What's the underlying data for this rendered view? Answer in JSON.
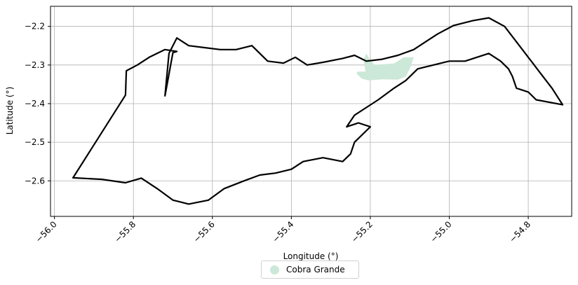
{
  "chart_data": {
    "type": "map",
    "xlabel": "Longitude (°)",
    "ylabel": "Latitude (°)",
    "xlim": [
      -56.01,
      -54.69
    ],
    "ylim": [
      -2.692,
      -2.148
    ],
    "x_ticks": [
      -56.0,
      -55.8,
      -55.6,
      -55.4,
      -55.2,
      -55.0,
      -54.8
    ],
    "x_tick_labels": [
      "−56.0",
      "−55.8",
      "−55.6",
      "−55.4",
      "−55.2",
      "−55.0",
      "−54.8"
    ],
    "y_ticks": [
      -2.2,
      -2.3,
      -2.4,
      -2.5,
      -2.6
    ],
    "y_tick_labels": [
      "−2.2",
      "−2.3",
      "−2.4",
      "−2.5",
      "−2.6"
    ],
    "grid": true,
    "legend": {
      "position": "bottom-center",
      "entries": [
        {
          "label": "Cobra Grande",
          "color": "#cce8d8"
        }
      ]
    },
    "highlighted_region": {
      "name": "Cobra Grande",
      "color": "#cce8d8",
      "polygon": [
        [
          -55.235,
          -2.322
        ],
        [
          -55.232,
          -2.317
        ],
        [
          -55.212,
          -2.317
        ],
        [
          -55.217,
          -2.287
        ],
        [
          -55.21,
          -2.27
        ],
        [
          -55.203,
          -2.283
        ],
        [
          -55.19,
          -2.3
        ],
        [
          -55.17,
          -2.298
        ],
        [
          -55.14,
          -2.296
        ],
        [
          -55.115,
          -2.28
        ],
        [
          -55.09,
          -2.28
        ],
        [
          -55.098,
          -2.305
        ],
        [
          -55.11,
          -2.33
        ],
        [
          -55.13,
          -2.338
        ],
        [
          -55.17,
          -2.337
        ],
        [
          -55.205,
          -2.34
        ],
        [
          -55.222,
          -2.335
        ],
        [
          -55.235,
          -2.322
        ]
      ]
    },
    "boundary_outline": [
      [
        -55.953,
        -2.592
      ],
      [
        -55.88,
        -2.596
      ],
      [
        -55.82,
        -2.605
      ],
      [
        -55.78,
        -2.593
      ],
      [
        -55.74,
        -2.62
      ],
      [
        -55.7,
        -2.65
      ],
      [
        -55.66,
        -2.66
      ],
      [
        -55.61,
        -2.65
      ],
      [
        -55.57,
        -2.62
      ],
      [
        -55.52,
        -2.6
      ],
      [
        -55.48,
        -2.585
      ],
      [
        -55.44,
        -2.58
      ],
      [
        -55.4,
        -2.57
      ],
      [
        -55.37,
        -2.55
      ],
      [
        -55.32,
        -2.54
      ],
      [
        -55.27,
        -2.55
      ],
      [
        -55.25,
        -2.53
      ],
      [
        -55.24,
        -2.5
      ],
      [
        -55.22,
        -2.48
      ],
      [
        -55.2,
        -2.46
      ],
      [
        -55.23,
        -2.45
      ],
      [
        -55.26,
        -2.46
      ],
      [
        -55.24,
        -2.43
      ],
      [
        -55.21,
        -2.41
      ],
      [
        -55.18,
        -2.39
      ],
      [
        -55.14,
        -2.36
      ],
      [
        -55.11,
        -2.34
      ],
      [
        -55.08,
        -2.31
      ],
      [
        -55.04,
        -2.3
      ],
      [
        -55.0,
        -2.29
      ],
      [
        -54.96,
        -2.29
      ],
      [
        -54.93,
        -2.28
      ],
      [
        -54.9,
        -2.27
      ],
      [
        -54.87,
        -2.29
      ],
      [
        -54.85,
        -2.31
      ],
      [
        -54.84,
        -2.33
      ],
      [
        -54.83,
        -2.36
      ],
      [
        -54.8,
        -2.37
      ],
      [
        -54.78,
        -2.39
      ],
      [
        -54.713,
        -2.403
      ],
      [
        -54.74,
        -2.36
      ],
      [
        -54.77,
        -2.32
      ],
      [
        -54.8,
        -2.28
      ],
      [
        -54.83,
        -2.24
      ],
      [
        -54.86,
        -2.2
      ],
      [
        -54.9,
        -2.178
      ],
      [
        -54.94,
        -2.185
      ],
      [
        -54.99,
        -2.198
      ],
      [
        -55.03,
        -2.22
      ],
      [
        -55.06,
        -2.24
      ],
      [
        -55.09,
        -2.26
      ],
      [
        -55.13,
        -2.275
      ],
      [
        -55.17,
        -2.285
      ],
      [
        -55.21,
        -2.29
      ],
      [
        -55.24,
        -2.275
      ],
      [
        -55.27,
        -2.283
      ],
      [
        -55.32,
        -2.293
      ],
      [
        -55.36,
        -2.3
      ],
      [
        -55.39,
        -2.28
      ],
      [
        -55.42,
        -2.295
      ],
      [
        -55.46,
        -2.29
      ],
      [
        -55.5,
        -2.25
      ],
      [
        -55.54,
        -2.26
      ],
      [
        -55.58,
        -2.26
      ],
      [
        -55.62,
        -2.255
      ],
      [
        -55.66,
        -2.25
      ],
      [
        -55.69,
        -2.23
      ],
      [
        -55.7,
        -2.25
      ],
      [
        -55.71,
        -2.27
      ],
      [
        -55.72,
        -2.38
      ],
      [
        -55.7,
        -2.268
      ],
      [
        -55.69,
        -2.265
      ],
      [
        -55.72,
        -2.26
      ],
      [
        -55.76,
        -2.28
      ],
      [
        -55.79,
        -2.3
      ],
      [
        -55.818,
        -2.315
      ],
      [
        -55.82,
        -2.378
      ],
      [
        -55.953,
        -2.592
      ]
    ]
  }
}
